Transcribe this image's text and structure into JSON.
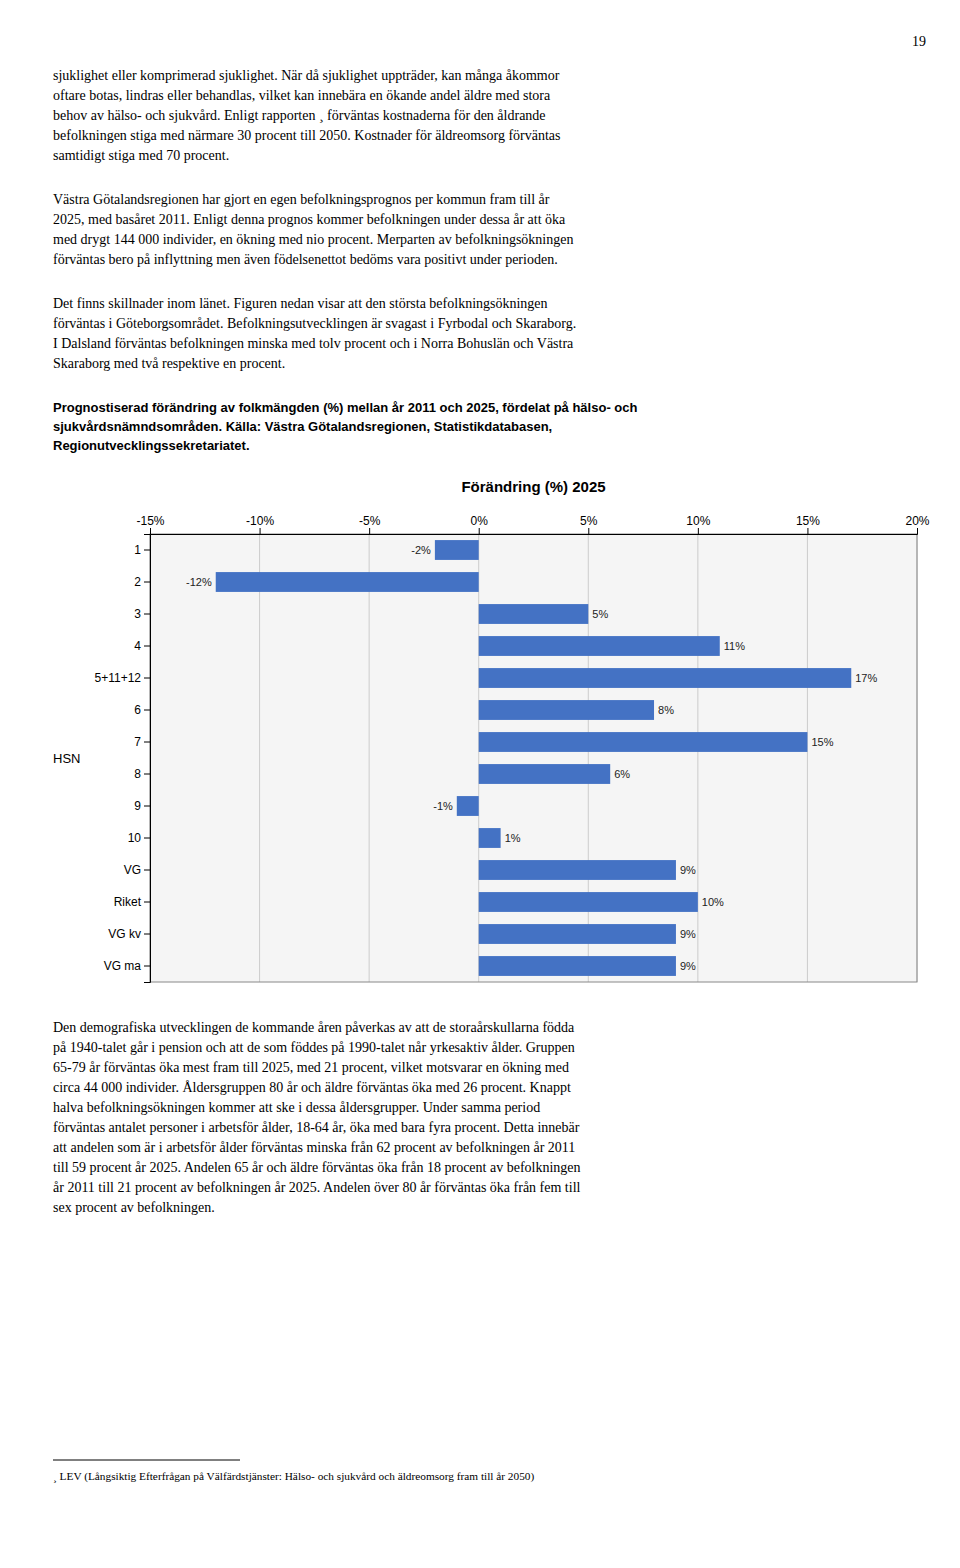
{
  "page_number": "19",
  "text_before": [
    "sjuklighet eller komprimerad sjuklighet. När då sjuklighet uppträder, kan många åkommor\noftare botas, lindras eller behandlas, vilket kan innebära en ökande andel äldre med stora\nbehov av hälso- och sjukvård. Enligt rapporten ¸ förväntas kostnaderna för den åldrande\nbefolkningen stiga med närmare 30 procent till 2050. Kostnader för äldreomsorg förväntas\nsamtidigt stiga med 70 procent.",
    "Västra Götalandsregionen har gjort en egen befolkningsprognos per kommun fram till år\n2025, med basåret 2011. Enligt denna prognos kommer befolkningen under dessa år att öka\nmed drygt 144 000 individer, en ökning med nio procent. Merparten av befolkningsökningen\nförväntas bero på inflyttning men även födelsenettot bedöms vara positivt under perioden.",
    "Det finns skillnader inom länet. Figuren nedan visar att den största befolkningsökningen\nförväntas i Göteborgsområdet. Befolkningsutvecklingen är svagast i Fyrbodal och Skaraborg.\nI Dalsland förväntas befolkningen minska med tolv procent och i Norra Bohuslän och Västra\nSkaraborg med två respektive en procent."
  ],
  "caption": "Prognostiserad förändring av folkmängden (%) mellan år 2011 och 2025, fördelat på hälso- och\nsjukvårdsnämndsområden. Källa: Västra Götalandsregionen, Statistikdatabasen,\nRegionutvecklingssekretariatet.",
  "chart_data": {
    "type": "bar",
    "orientation": "horizontal",
    "title": "Förändring (%) 2025",
    "y_label": "HSN",
    "categories": [
      "1",
      "2",
      "3",
      "4",
      "5+11+12",
      "6",
      "7",
      "8",
      "9",
      "10",
      "VG",
      "Riket",
      "VG kv",
      "VG ma"
    ],
    "values": [
      -2,
      -12,
      5,
      11,
      17,
      8,
      15,
      6,
      -1,
      1,
      9,
      10,
      9,
      9
    ],
    "value_labels": [
      "-2%",
      "-12%",
      "5%",
      "11%",
      "17%",
      "8%",
      "15%",
      "6%",
      "-1%",
      "1%",
      "9%",
      "10%",
      "9%",
      "9%"
    ],
    "data_labels": true,
    "color": "#4472C4",
    "xlim": [
      -15,
      20
    ],
    "xticks": [
      {
        "value": -15,
        "label": "-15%"
      },
      {
        "value": -10,
        "label": "-10%"
      },
      {
        "value": -5,
        "label": "-5%"
      },
      {
        "value": 0,
        "label": "0%"
      },
      {
        "value": 5,
        "label": "5%"
      },
      {
        "value": 10,
        "label": "10%"
      },
      {
        "value": 15,
        "label": "15%"
      },
      {
        "value": 20,
        "label": "20%"
      }
    ],
    "grid": true
  },
  "text_after": [
    "Den demografiska utvecklingen de kommande åren påverkas av att de storaårskullarna födda\npå 1940-talet går i pension och att de som föddes på 1990-talet når yrkesaktiv ålder. Gruppen\n65-79 år förväntas öka mest fram till 2025, med 21 procent, vilket motsvarar en ökning med\ncirca 44 000 individer. Åldersgruppen 80 år och äldre förväntas öka med 26 procent. Knappt\nhalva befolkningsökningen kommer att ske i dessa åldersgrupper. Under samma period\nförväntas antalet personer i arbetsför ålder, 18-64 år, öka med bara fyra procent. Detta innebär\natt andelen som är i arbetsför ålder förväntas minska från 62 procent av befolkningen år 2011\ntill 59 procent år 2025. Andelen 65 år och äldre förväntas öka från 18 procent av befolkningen\når 2011 till 21 procent av befolkningen år 2025. Andelen över 80 år förväntas öka från fem till\nsex procent av befolkningen."
  ],
  "footnote": "¸ LEV (Långsiktig Efterfrågan på Välfärdstjänster: Hälso- och sjukvård och äldreomsorg fram till år 2050)"
}
